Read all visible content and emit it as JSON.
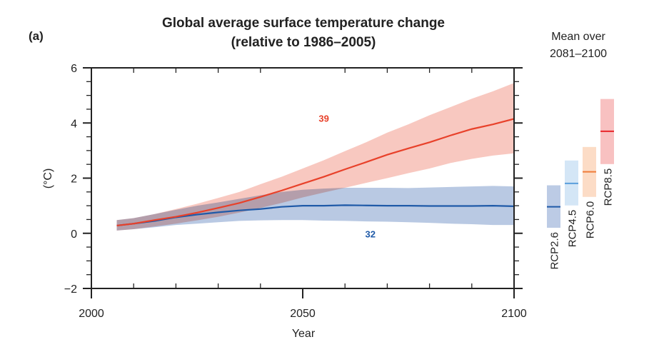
{
  "chart_data": {
    "type": "line",
    "panel_label": "(a)",
    "title": "Global average surface temperature change",
    "subtitle": "(relative to 1986–2005)",
    "xlabel": "Year",
    "ylabel": "(°C)",
    "xlim": [
      2000,
      2100
    ],
    "ylim": [
      -2,
      6
    ],
    "x_ticks": [
      2000,
      2050,
      2100
    ],
    "y_ticks": [
      -2,
      0,
      2,
      4,
      6
    ],
    "grid": false,
    "series": [
      {
        "name": "RCP2.6",
        "color": "#1f5aa8",
        "band_color": "#7f9dcc",
        "model_count_label": "32",
        "x": [
          2006,
          2010,
          2015,
          2020,
          2025,
          2030,
          2035,
          2040,
          2045,
          2050,
          2055,
          2060,
          2065,
          2070,
          2075,
          2080,
          2085,
          2090,
          2095,
          2100
        ],
        "mean": [
          0.28,
          0.35,
          0.45,
          0.58,
          0.68,
          0.76,
          0.83,
          0.88,
          0.96,
          1.0,
          1.0,
          1.02,
          1.01,
          1.0,
          1.0,
          0.99,
          0.99,
          0.99,
          1.0,
          0.98
        ],
        "lower": [
          0.1,
          0.15,
          0.22,
          0.3,
          0.35,
          0.4,
          0.45,
          0.47,
          0.48,
          0.48,
          0.46,
          0.45,
          0.43,
          0.42,
          0.4,
          0.38,
          0.35,
          0.33,
          0.3,
          0.3
        ],
        "upper": [
          0.48,
          0.55,
          0.7,
          0.85,
          1.0,
          1.12,
          1.25,
          1.38,
          1.5,
          1.58,
          1.62,
          1.65,
          1.65,
          1.65,
          1.64,
          1.66,
          1.68,
          1.7,
          1.72,
          1.7
        ]
      },
      {
        "name": "RCP8.5",
        "color": "#e8412a",
        "band_color": "#f29b8c",
        "model_count_label": "39",
        "x": [
          2006,
          2010,
          2015,
          2020,
          2025,
          2030,
          2035,
          2040,
          2045,
          2050,
          2055,
          2060,
          2065,
          2070,
          2075,
          2080,
          2085,
          2090,
          2095,
          2100
        ],
        "mean": [
          0.28,
          0.35,
          0.48,
          0.6,
          0.75,
          0.92,
          1.1,
          1.32,
          1.55,
          1.8,
          2.05,
          2.32,
          2.58,
          2.85,
          3.08,
          3.3,
          3.55,
          3.78,
          3.95,
          4.15
        ],
        "lower": [
          0.1,
          0.15,
          0.25,
          0.35,
          0.47,
          0.6,
          0.75,
          0.92,
          1.1,
          1.3,
          1.48,
          1.65,
          1.83,
          2.0,
          2.18,
          2.35,
          2.55,
          2.7,
          2.82,
          2.9
        ],
        "upper": [
          0.48,
          0.55,
          0.7,
          0.88,
          1.07,
          1.28,
          1.5,
          1.78,
          2.05,
          2.35,
          2.65,
          2.98,
          3.3,
          3.65,
          3.95,
          4.28,
          4.58,
          4.88,
          5.15,
          5.45
        ]
      }
    ],
    "side_panel": {
      "title_line1": "Mean over",
      "title_line2": "2081–2100",
      "bars": [
        {
          "name": "RCP2.6",
          "low": 0.2,
          "high": 1.74,
          "mean": 0.96,
          "fill": "#bccbe5",
          "line": "#1f5aa8"
        },
        {
          "name": "RCP4.5",
          "low": 1.01,
          "high": 2.64,
          "mean": 1.81,
          "fill": "#d4e6f6",
          "line": "#5b9fdc"
        },
        {
          "name": "RCP6.0",
          "low": 1.32,
          "high": 3.13,
          "mean": 2.23,
          "fill": "#fcdcc6",
          "line": "#f07c3a"
        },
        {
          "name": "RCP8.5",
          "low": 2.51,
          "high": 4.87,
          "mean": 3.7,
          "fill": "#f8c1c1",
          "line": "#e8262b"
        }
      ]
    }
  }
}
